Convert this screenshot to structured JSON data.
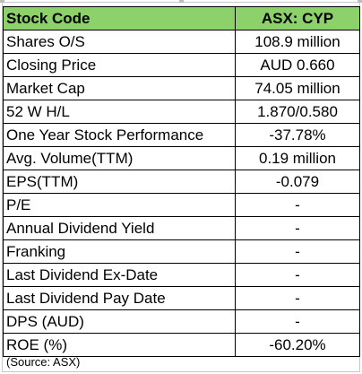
{
  "table": {
    "header": {
      "label": "Stock Code",
      "value": "ASX: CYP"
    },
    "header_color": "#8dd16a",
    "rows": [
      {
        "label": "Shares O/S",
        "value": "108.9 million"
      },
      {
        "label": "Closing Price",
        "value": "AUD 0.660"
      },
      {
        "label": "Market Cap",
        "value": "74.05 million"
      },
      {
        "label": "52 W H/L",
        "value": "1.870/0.580"
      },
      {
        "label": "One Year Stock Performance",
        "value": "-37.78%"
      },
      {
        "label": "Avg. Volume(TTM)",
        "value": "0.19 million"
      },
      {
        "label": "EPS(TTM)",
        "value": "-0.079"
      },
      {
        "label": "P/E",
        "value": "-"
      },
      {
        "label": "Annual Dividend Yield",
        "value": "-"
      },
      {
        "label": "Franking",
        "value": "-"
      },
      {
        "label": "Last Dividend Ex-Date",
        "value": "-"
      },
      {
        "label": "Last Dividend Pay Date",
        "value": "-"
      },
      {
        "label": "DPS (AUD)",
        "value": "-"
      },
      {
        "label": "ROE (%)",
        "value": "-60.20%"
      }
    ]
  },
  "source": "(Source: ASX)"
}
